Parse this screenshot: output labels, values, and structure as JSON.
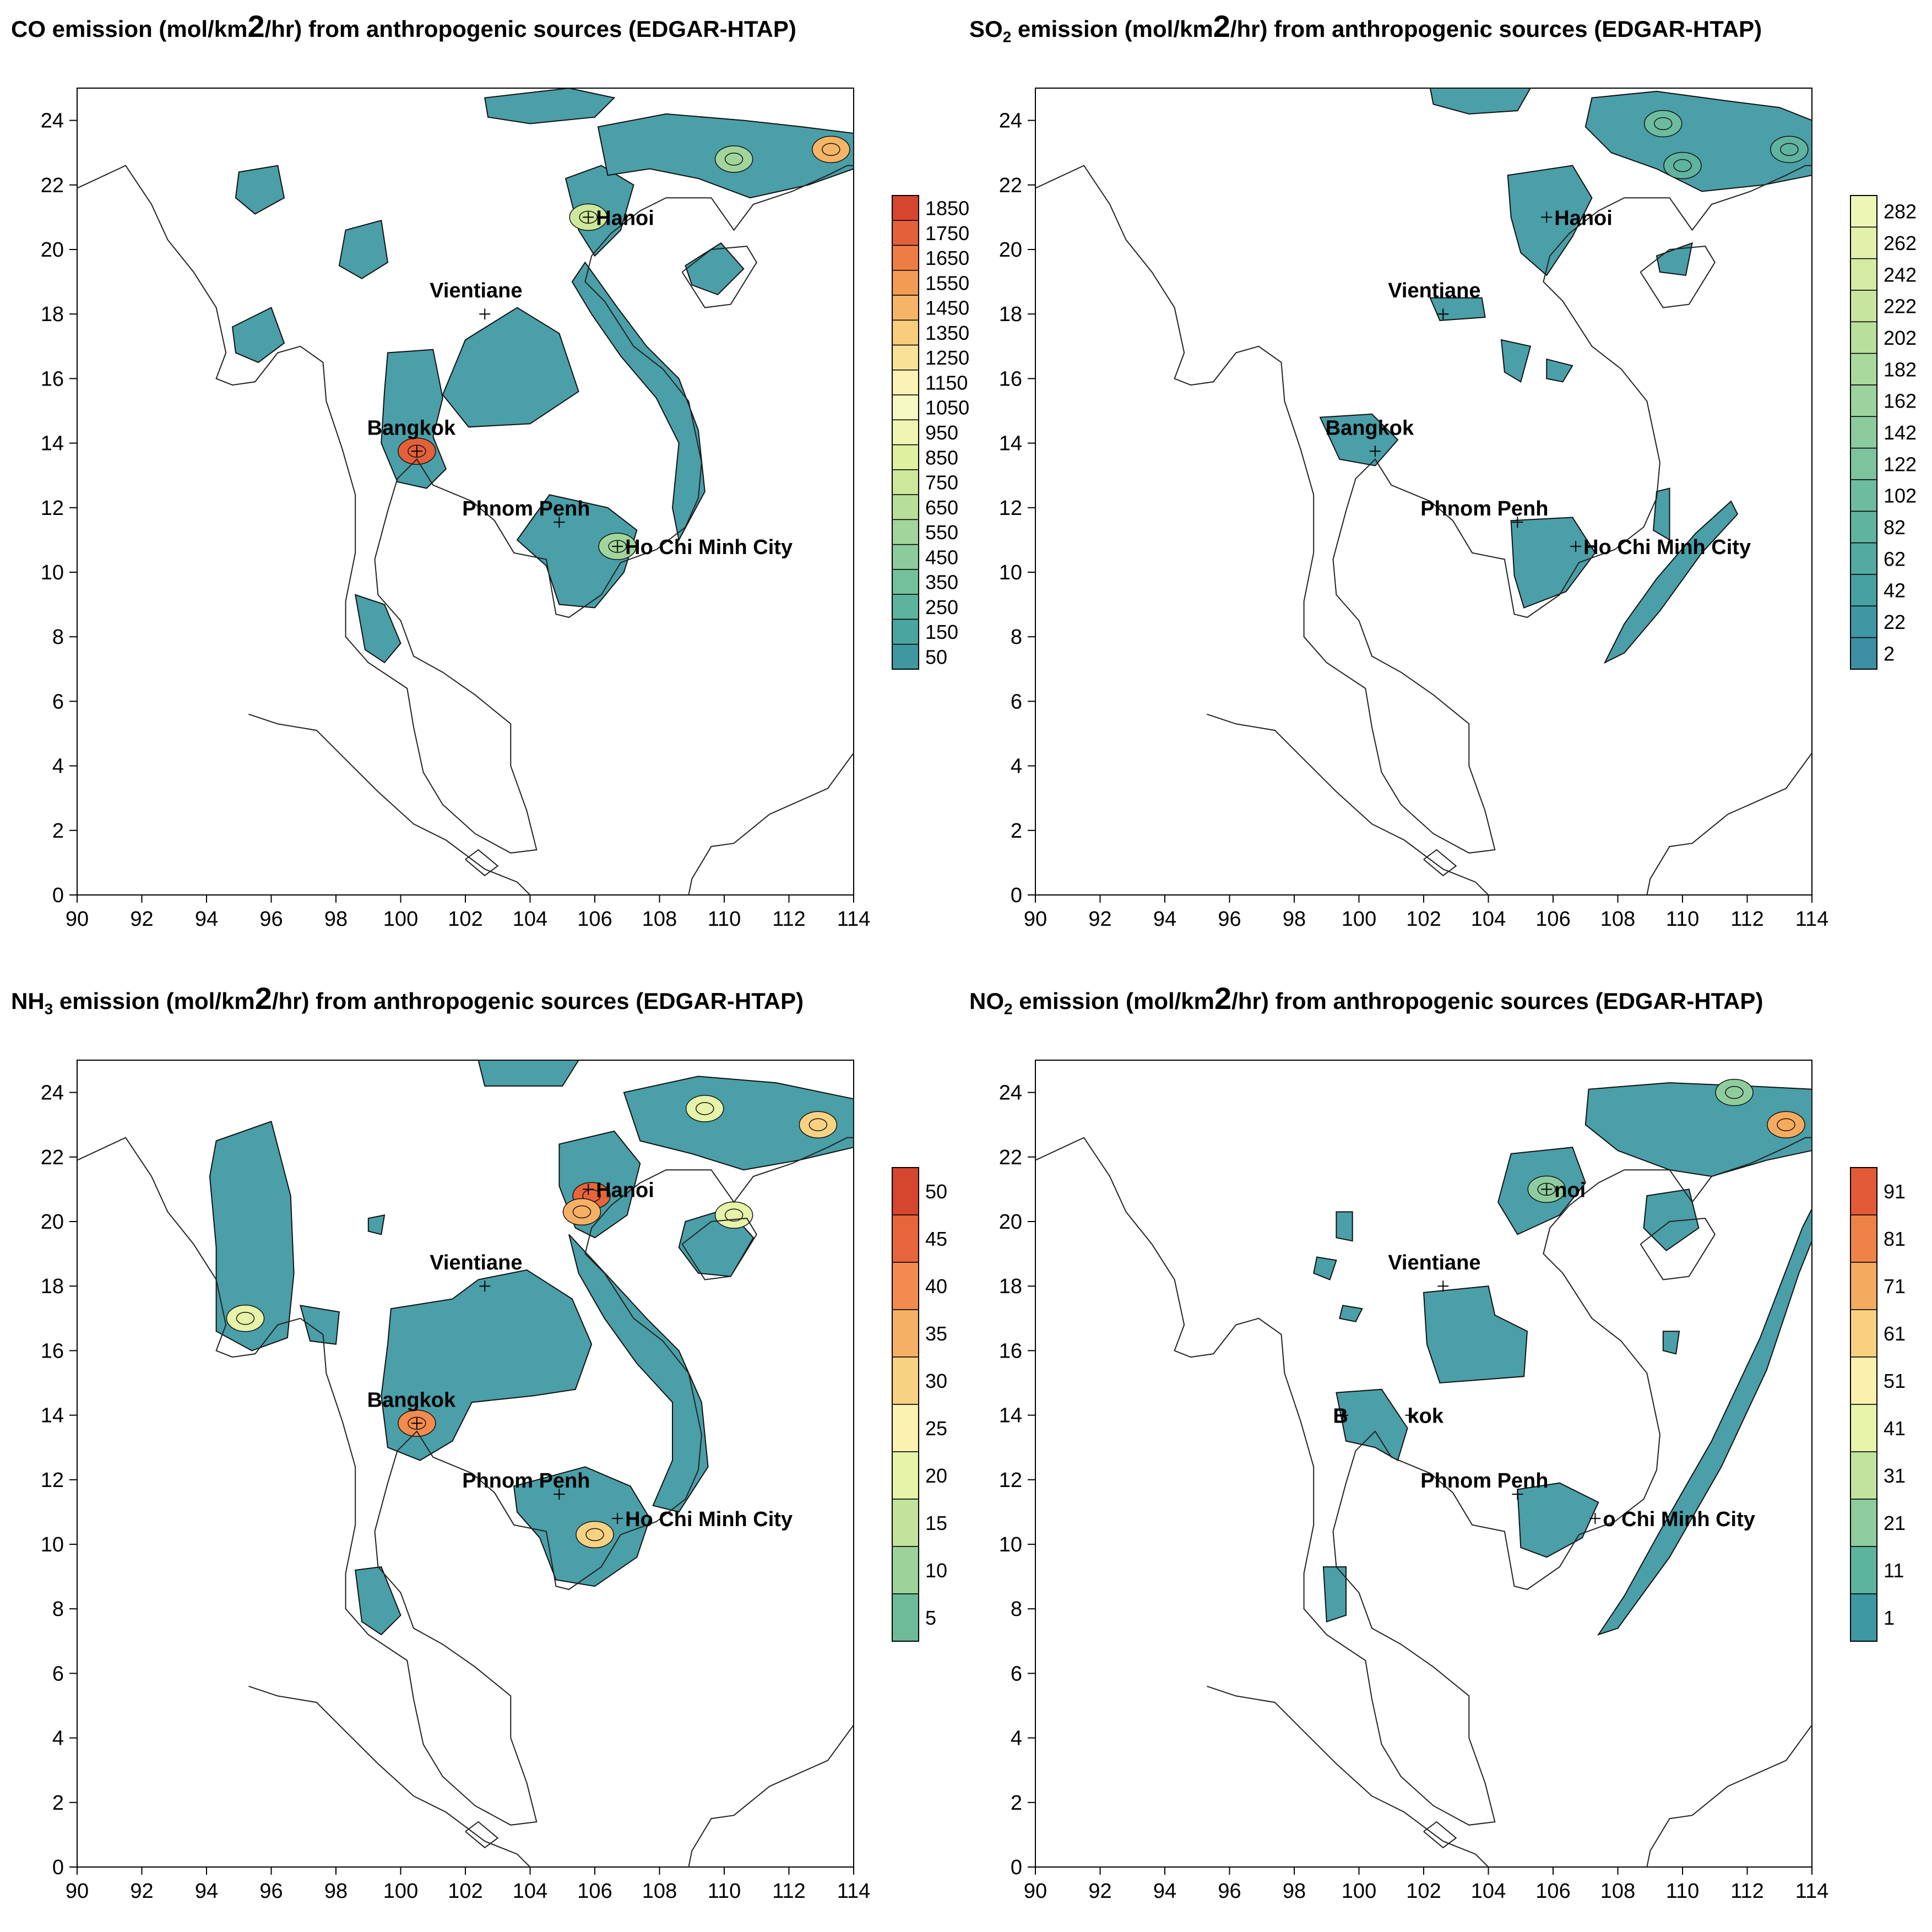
{
  "panels": [
    {
      "id": "co",
      "title": {
        "pre": "CO emission (mol/km",
        "sup": "2",
        "post": "/hr) from anthropogenic sources (EDGAR-HTAP)",
        "sub": ""
      },
      "colorbar": {
        "labels": [
          "1850",
          "1750",
          "1650",
          "1550",
          "1450",
          "1350",
          "1250",
          "1150",
          "1050",
          "950",
          "850",
          "750",
          "650",
          "550",
          "450",
          "350",
          "250",
          "150",
          "50"
        ],
        "colors": [
          "#d6452d",
          "#e4603a",
          "#ee7d45",
          "#f39a54",
          "#f6b566",
          "#f8cd7c",
          "#f9e298",
          "#fbf3b5",
          "#f7f9c4",
          "#eef6b2",
          "#dff0a0",
          "#cde89a",
          "#b8df9a",
          "#a2d59b",
          "#8ccb9c",
          "#74c09c",
          "#5eb39e",
          "#4aa59f",
          "#3f98a0"
        ]
      },
      "cities": [
        {
          "name": "Hanoi",
          "lon": 105.8,
          "lat": 21.0
        },
        {
          "name": "Vientiane",
          "lon": 102.6,
          "lat": 18.0
        },
        {
          "name": "Bangkok",
          "lon": 100.5,
          "lat": 13.75
        },
        {
          "name": "Phnom Penh",
          "lon": 104.9,
          "lat": 11.55
        },
        {
          "name": "Ho Chi Minh City",
          "lon": 106.7,
          "lat": 10.8
        }
      ]
    },
    {
      "id": "so2",
      "title": {
        "pre": "SO",
        "sub": "2",
        "pre2": " emission (mol/km",
        "sup": "2",
        "post": "/hr) from anthropogenic sources (EDGAR-HTAP)"
      },
      "colorbar": {
        "labels": [
          "282",
          "262",
          "242",
          "222",
          "202",
          "182",
          "162",
          "142",
          "122",
          "102",
          "82",
          "62",
          "42",
          "22",
          "2"
        ],
        "colors": [
          "#eef6b6",
          "#e2f0ab",
          "#d5eba2",
          "#c7e59e",
          "#b9df9d",
          "#aad99d",
          "#9bd29d",
          "#8ccb9d",
          "#7dc49e",
          "#6ebc9f",
          "#60b39f",
          "#52aaa0",
          "#47a0a1",
          "#4096a2",
          "#3c8ea3"
        ]
      },
      "cities": [
        {
          "name": "Hanoi",
          "lon": 105.8,
          "lat": 21.0
        },
        {
          "name": "Vientiane",
          "lon": 102.6,
          "lat": 18.0
        },
        {
          "name": "Bangkok",
          "lon": 100.5,
          "lat": 13.75
        },
        {
          "name": "Phnom Penh",
          "lon": 104.9,
          "lat": 11.55
        },
        {
          "name": "Ho Chi Minh City",
          "lon": 106.7,
          "lat": 10.8
        }
      ]
    },
    {
      "id": "nh3",
      "title": {
        "pre": "NH",
        "sub": "3",
        "pre2": " emission (mol/km",
        "sup": "2",
        "post": "/hr) from anthropogenic sources (EDGAR-HTAP)"
      },
      "colorbar": {
        "labels": [
          "50",
          "45",
          "40",
          "35",
          "30",
          "25",
          "20",
          "15",
          "10",
          "5"
        ],
        "colors": [
          "#d6452d",
          "#e8653c",
          "#f28b4d",
          "#f6b066",
          "#f8d283",
          "#fbf2b2",
          "#e6f3a8",
          "#c3e39c",
          "#9dd29b",
          "#6dbb98"
        ]
      },
      "cities": [
        {
          "name": "Hanoi",
          "lon": 105.8,
          "lat": 21.0
        },
        {
          "name": "Vientiane",
          "lon": 102.6,
          "lat": 18.0
        },
        {
          "name": "Bangkok",
          "lon": 100.5,
          "lat": 13.75
        },
        {
          "name": "Phnom Penh",
          "lon": 104.9,
          "lat": 11.55
        },
        {
          "name": "Ho Chi Minh City",
          "lon": 106.7,
          "lat": 10.8
        }
      ]
    },
    {
      "id": "no2",
      "title": {
        "pre": "NO",
        "sub": "2",
        "pre2": " emission (mol/km",
        "sup": "2",
        "post": "/hr) from anthropogenic sources (EDGAR-HTAP)"
      },
      "colorbar": {
        "labels": [
          "91",
          "81",
          "71",
          "61",
          "51",
          "41",
          "31",
          "21",
          "11",
          "1"
        ],
        "colors": [
          "#e35a38",
          "#ef8347",
          "#f5ab5f",
          "#f8d07f",
          "#fbf0ae",
          "#e8f4a9",
          "#c1e39d",
          "#8fcc9d",
          "#5cb39e",
          "#3d98a3"
        ]
      },
      "cities": [
        {
          "name": "noi",
          "lon": 105.8,
          "lat": 21.0
        },
        {
          "name": "Vientiane",
          "lon": 102.6,
          "lat": 18.0
        },
        {
          "name": "B",
          "lon": 99.5,
          "lat": 14.0
        },
        {
          "name": "kok",
          "lon": 101.6,
          "lat": 14.0
        },
        {
          "name": "Phnom Penh",
          "lon": 104.9,
          "lat": 11.55
        },
        {
          "name": "o Chi Minh City",
          "lon": 107.3,
          "lat": 10.8
        }
      ]
    }
  ],
  "xticks": [
    90,
    92,
    94,
    96,
    98,
    100,
    102,
    104,
    106,
    108,
    110,
    112,
    114
  ],
  "yticks": [
    0,
    2,
    4,
    6,
    8,
    10,
    12,
    14,
    16,
    18,
    20,
    22,
    24
  ],
  "xlim": [
    90,
    114
  ],
  "ylim": [
    0,
    25
  ],
  "fill_color": "#4a9fa8"
}
